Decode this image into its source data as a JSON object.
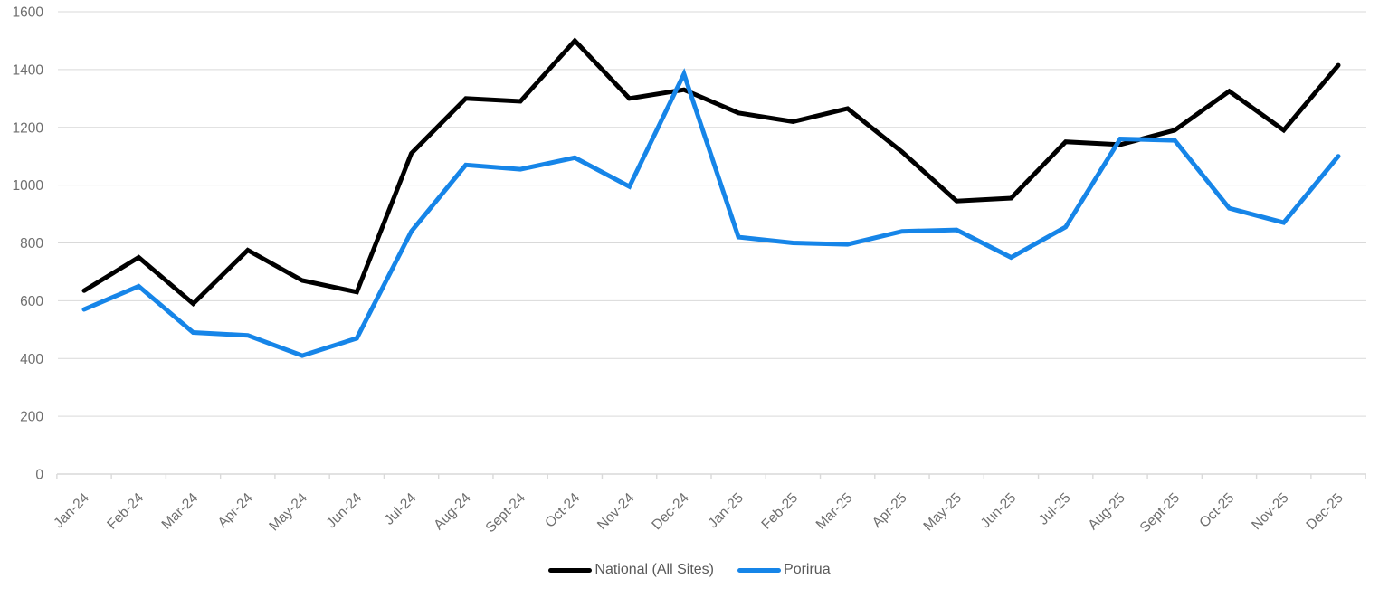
{
  "chart_data": {
    "type": "line",
    "title": "",
    "xlabel": "",
    "ylabel": "",
    "categories": [
      "Jan-24",
      "Feb-24",
      "Mar-24",
      "Apr-24",
      "May-24",
      "Jun-24",
      "Jul-24",
      "Aug-24",
      "Sept-24",
      "Oct-24",
      "Nov-24",
      "Dec-24",
      "Jan-25",
      "Feb-25",
      "Mar-25",
      "Apr-25",
      "May-25",
      "Jun-25",
      "Jul-25",
      "Aug-25",
      "Sept-25",
      "Oct-25",
      "Nov-25",
      "Dec-25"
    ],
    "series": [
      {
        "name": "National (All Sites)",
        "color": "#000000",
        "values": [
          635,
          750,
          590,
          775,
          670,
          630,
          1110,
          1300,
          1290,
          1500,
          1300,
          1330,
          1250,
          1220,
          1265,
          1115,
          945,
          955,
          1150,
          1140,
          1190,
          1325,
          1190,
          1415
        ]
      },
      {
        "name": "Porirua",
        "color": "#1685E8",
        "values": [
          570,
          650,
          490,
          480,
          410,
          470,
          840,
          1070,
          1055,
          1095,
          995,
          1385,
          820,
          800,
          795,
          840,
          845,
          750,
          855,
          1160,
          1155,
          920,
          870,
          1100
        ]
      }
    ],
    "ylim": [
      0,
      1600
    ],
    "yticks": [
      0,
      200,
      400,
      600,
      800,
      1000,
      1200,
      1400,
      1600
    ],
    "grid": true,
    "legend_position": "bottom",
    "theme": {
      "gridline_color": "#D9D9D9",
      "axis_color": "#D9D9D9",
      "tick_label_color": "#6E6E6E",
      "legend_text_color": "#595959",
      "background": "#FFFFFF"
    }
  }
}
